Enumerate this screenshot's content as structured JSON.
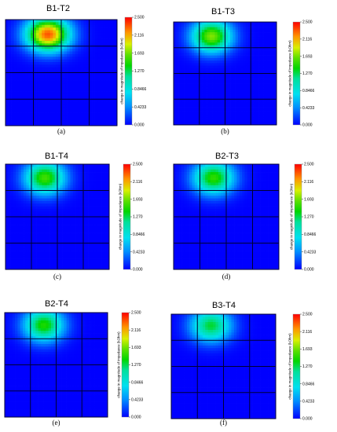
{
  "chart_data": [
    {
      "type": "heatmap",
      "title": "B1-T2",
      "caption": "(a)",
      "colorbar_label": "change in magnitude of impedance (kOhm)",
      "colorbar_ticks": [
        "2.500",
        "2.116",
        "1.693",
        "1.270",
        "0.8466",
        "0.4233",
        "0.000"
      ],
      "range": [
        0,
        2.5
      ],
      "grid": "4x4",
      "hotspot": {
        "x": 0.38,
        "y": 0.14,
        "peak": 2.3
      }
    },
    {
      "type": "heatmap",
      "title": "B1-T3",
      "caption": "(b)",
      "colorbar_label": "change in magnitude of impedance (kOhm)",
      "colorbar_ticks": [
        "2.500",
        "2.116",
        "1.693",
        "1.270",
        "0.8466",
        "0.4233",
        "0.000"
      ],
      "range": [
        0,
        2.5
      ],
      "grid": "4x4",
      "hotspot": {
        "x": 0.37,
        "y": 0.14,
        "peak": 1.7
      }
    },
    {
      "type": "heatmap",
      "title": "B1-T4",
      "caption": "(c)",
      "colorbar_label": "change in magnitude of impedance (kOhm)",
      "colorbar_ticks": [
        "2.500",
        "2.116",
        "1.693",
        "1.270",
        "0.8466",
        "0.4233",
        "0.000"
      ],
      "range": [
        0,
        2.5
      ],
      "grid": "4x4",
      "hotspot": {
        "x": 0.38,
        "y": 0.13,
        "peak": 1.55
      }
    },
    {
      "type": "heatmap",
      "title": "B2-T3",
      "caption": "(d)",
      "colorbar_label": "change in magnitude of impedance (kOhm)",
      "colorbar_ticks": [
        "2.500",
        "2.116",
        "1.693",
        "1.270",
        "0.8466",
        "0.4233",
        "0.000"
      ],
      "range": [
        0,
        2.5
      ],
      "grid": "4x4",
      "hotspot": {
        "x": 0.38,
        "y": 0.13,
        "peak": 1.5
      }
    },
    {
      "type": "heatmap",
      "title": "B2-T4",
      "caption": "(e)",
      "colorbar_label": "change in magnitude of impedance (kOhm)",
      "colorbar_ticks": [
        "2.500",
        "2.116",
        "1.693",
        "1.270",
        "0.8466",
        "0.4233",
        "0.000"
      ],
      "range": [
        0,
        2.5
      ],
      "grid": "4x4",
      "hotspot": {
        "x": 0.38,
        "y": 0.12,
        "peak": 1.45
      }
    },
    {
      "type": "heatmap",
      "title": "B3-T4",
      "caption": "(f)",
      "colorbar_label": "change in magnitude of impedance (kOhm)",
      "colorbar_ticks": [
        "2.500",
        "2.116",
        "1.693",
        "1.270",
        "0.8466",
        "0.4233",
        "0.000"
      ],
      "range": [
        0,
        2.5
      ],
      "grid": "4x4",
      "hotspot": {
        "x": 0.38,
        "y": 0.11,
        "peak": 1.3
      }
    }
  ]
}
